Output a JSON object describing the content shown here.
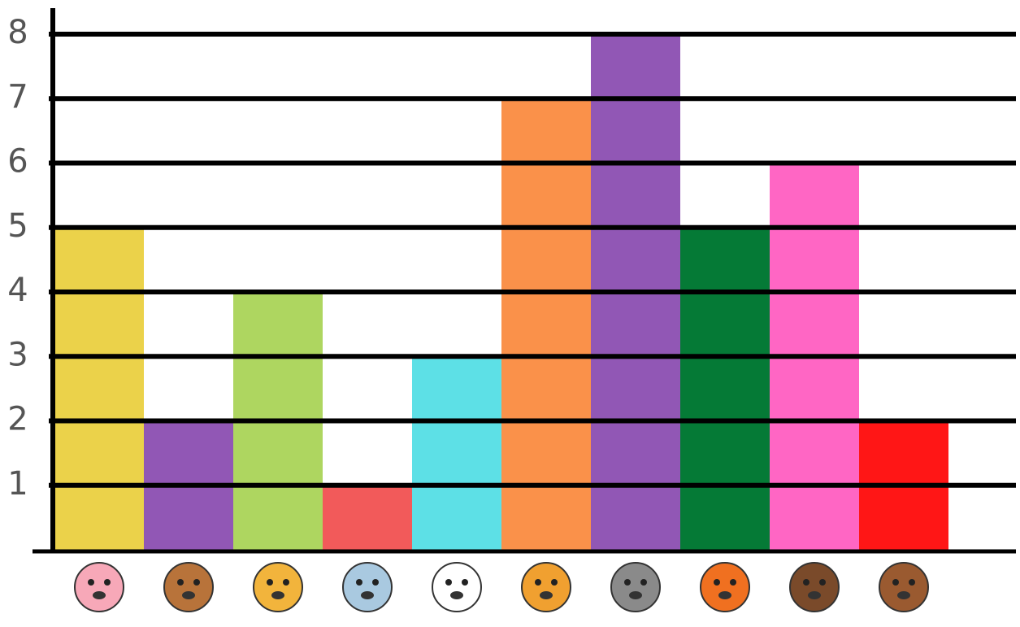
{
  "chart_data": {
    "type": "bar",
    "categories": [
      null,
      null,
      null,
      null,
      null,
      null,
      null,
      null,
      null,
      null
    ],
    "values": [
      5,
      2,
      4,
      1,
      3,
      7,
      8,
      5,
      6,
      2
    ],
    "colors": [
      "#ebd24a",
      "#9157b5",
      "#aed660",
      "#f25a5a",
      "#5de0e6",
      "#fa914a",
      "#9157b5",
      "#057a36",
      "#ff66c4",
      "#ff1616"
    ],
    "ylim": [
      0,
      8
    ],
    "yticks": [
      1,
      2,
      3,
      4,
      5,
      6,
      7,
      8
    ],
    "grid": true
  }
}
